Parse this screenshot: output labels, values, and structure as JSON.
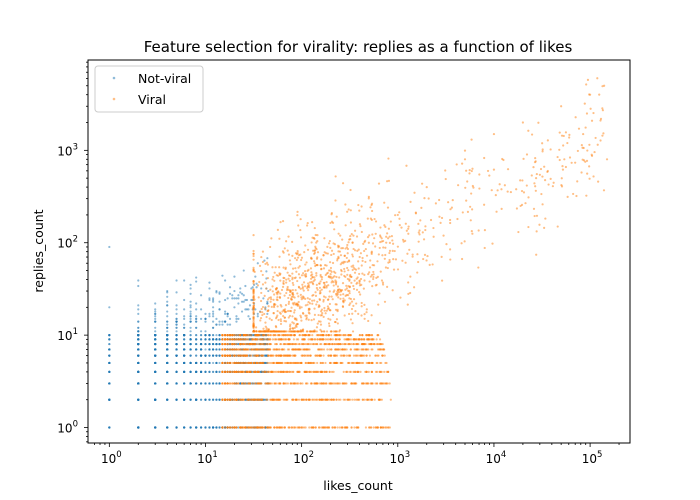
{
  "chart_data": {
    "type": "scatter",
    "title": "Feature selection for virality: replies as a function of likes",
    "xlabel": "likes_count",
    "ylabel": "replies_count",
    "xscale": "log",
    "yscale": "log",
    "xlim": [
      0.6,
      260000
    ],
    "ylim": [
      0.68,
      9500
    ],
    "xticks": [
      {
        "value": 1,
        "base": "10",
        "exp": "0"
      },
      {
        "value": 10,
        "base": "10",
        "exp": "1"
      },
      {
        "value": 100,
        "base": "10",
        "exp": "2"
      },
      {
        "value": 1000,
        "base": "10",
        "exp": "3"
      },
      {
        "value": 10000,
        "base": "10",
        "exp": "4"
      },
      {
        "value": 100000,
        "base": "10",
        "exp": "5"
      }
    ],
    "yticks": [
      {
        "value": 1,
        "base": "10",
        "exp": "0"
      },
      {
        "value": 10,
        "base": "10",
        "exp": "1"
      },
      {
        "value": 100,
        "base": "10",
        "exp": "2"
      },
      {
        "value": 1000,
        "base": "10",
        "exp": "3"
      }
    ],
    "grid": false,
    "legend_position": "top-left",
    "series": [
      {
        "name": "Not-viral",
        "color": "#1f77b4",
        "alpha": 0.5,
        "approx_x_range": [
          1,
          45
        ],
        "approx_y_range": [
          1,
          90
        ],
        "sample_points": [
          [
            1,
            1
          ],
          [
            1,
            2
          ],
          [
            1,
            5
          ],
          [
            1,
            10
          ],
          [
            1,
            20
          ],
          [
            1,
            90
          ],
          [
            2,
            3
          ],
          [
            3,
            8
          ],
          [
            5,
            12
          ],
          [
            8,
            15
          ],
          [
            12,
            20
          ],
          [
            20,
            30
          ],
          [
            25,
            50
          ],
          [
            35,
            60
          ],
          [
            40,
            25
          ]
        ]
      },
      {
        "name": "Viral",
        "color": "#ff7f0e",
        "alpha": 0.5,
        "approx_x_range": [
          15,
          150000
        ],
        "approx_y_range": [
          1,
          6000
        ],
        "sample_points": [
          [
            20,
            1
          ],
          [
            50,
            5
          ],
          [
            100,
            20
          ],
          [
            200,
            50
          ],
          [
            500,
            100
          ],
          [
            1000,
            200
          ],
          [
            2000,
            400
          ],
          [
            5000,
            800
          ],
          [
            10000,
            1500
          ],
          [
            20000,
            2000
          ],
          [
            50000,
            3000
          ],
          [
            100000,
            4000
          ],
          [
            140000,
            5000
          ],
          [
            150000,
            800
          ]
        ]
      }
    ]
  }
}
